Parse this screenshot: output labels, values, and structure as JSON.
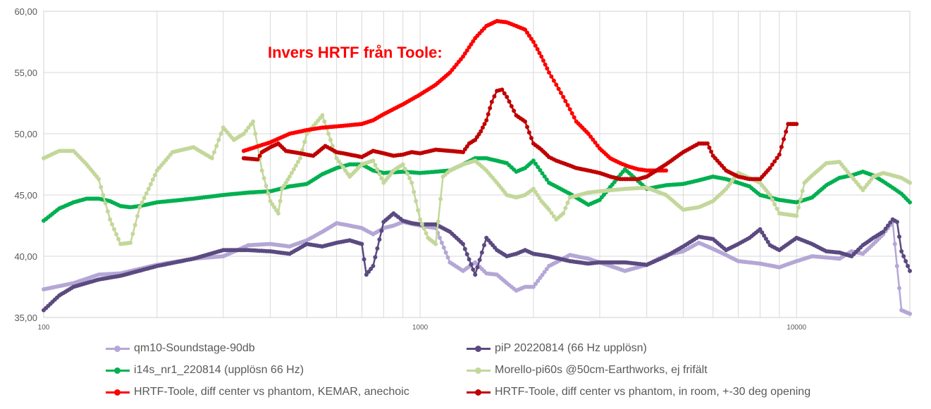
{
  "chart_data": {
    "type": "line",
    "title": "",
    "annotation": "Invers HRTF från Toole:",
    "x_scale": "log",
    "xlim": [
      100,
      20000
    ],
    "ylim": [
      35,
      60
    ],
    "x_ticks": [
      100,
      1000,
      10000
    ],
    "x_tick_labels": [
      "100",
      "1000",
      "10000"
    ],
    "y_ticks": [
      35,
      40,
      45,
      50,
      55,
      60
    ],
    "y_tick_labels": [
      "35,00",
      "40,00",
      "45,00",
      "50,00",
      "55,00",
      "60,00"
    ],
    "grid": true,
    "legend_position": "bottom",
    "series": [
      {
        "name": "qm10-Soundstage-90db",
        "color": "#b4a7d6",
        "x": [
          100,
          120,
          140,
          160,
          200,
          250,
          300,
          350,
          400,
          450,
          500,
          550,
          600,
          650,
          700,
          750,
          800,
          850,
          900,
          1000,
          1100,
          1200,
          1300,
          1400,
          1500,
          1600,
          1700,
          1800,
          1900,
          2000,
          2200,
          2500,
          2800,
          3000,
          3500,
          4000,
          4500,
          5000,
          5500,
          6000,
          6500,
          7000,
          8000,
          9000,
          10000,
          11000,
          12000,
          13000,
          14000,
          15000,
          16000,
          17000,
          18000,
          19000,
          20000
        ],
        "values": [
          37.3,
          37.8,
          38.5,
          38.6,
          39.3,
          39.8,
          40.0,
          40.9,
          41.0,
          40.8,
          41.3,
          42.0,
          42.7,
          42.5,
          42.3,
          41.8,
          42.3,
          42.5,
          42.8,
          42.5,
          42.3,
          39.5,
          38.8,
          39.5,
          38.6,
          38.5,
          37.8,
          37.2,
          37.5,
          37.5,
          39.2,
          40.1,
          39.8,
          39.5,
          38.8,
          39.3,
          40.1,
          40.4,
          41.1,
          40.6,
          40.1,
          39.6,
          39.4,
          39.1,
          39.6,
          40.0,
          39.9,
          39.8,
          40.4,
          40.2,
          41.0,
          41.8,
          42.8,
          35.6,
          35.3
        ]
      },
      {
        "name": "piP 20220814 (66 Hz upplösn)",
        "color": "#5b4a80",
        "x": [
          100,
          110,
          120,
          140,
          160,
          200,
          250,
          300,
          350,
          400,
          450,
          500,
          550,
          600,
          650,
          700,
          720,
          750,
          800,
          850,
          900,
          950,
          1000,
          1100,
          1200,
          1300,
          1400,
          1500,
          1600,
          1700,
          1800,
          1900,
          2000,
          2200,
          2500,
          2800,
          3000,
          3500,
          4000,
          4500,
          5000,
          5500,
          6000,
          6500,
          7000,
          7500,
          8000,
          8500,
          9000,
          10000,
          11000,
          12000,
          13000,
          14000,
          15000,
          16000,
          17000,
          18000,
          18500,
          19000,
          20000
        ],
        "values": [
          35.6,
          36.8,
          37.5,
          38.1,
          38.4,
          39.2,
          39.8,
          40.5,
          40.5,
          40.4,
          40.2,
          41.0,
          40.8,
          41.1,
          41.3,
          41.0,
          38.5,
          39.2,
          42.8,
          43.5,
          42.9,
          42.7,
          42.6,
          42.6,
          42.0,
          41.0,
          38.5,
          41.5,
          40.5,
          40.0,
          40.2,
          40.5,
          40.2,
          40.0,
          39.6,
          39.4,
          39.5,
          39.5,
          39.3,
          40.0,
          40.8,
          41.6,
          41.4,
          40.5,
          41.0,
          41.5,
          42.2,
          40.9,
          40.5,
          41.5,
          41.0,
          40.4,
          40.3,
          40.0,
          40.9,
          41.5,
          42.0,
          43.0,
          42.8,
          40.4,
          38.8
        ]
      },
      {
        "name": "i14s_nr1_220814 (upplösn 66 Hz)",
        "color": "#00b050",
        "x": [
          100,
          110,
          120,
          130,
          140,
          150,
          160,
          170,
          180,
          200,
          250,
          300,
          350,
          400,
          450,
          500,
          550,
          600,
          650,
          700,
          750,
          800,
          900,
          1000,
          1100,
          1200,
          1300,
          1400,
          1500,
          1600,
          1700,
          1800,
          1900,
          2000,
          2200,
          2500,
          2800,
          3000,
          3500,
          4000,
          4500,
          5000,
          5500,
          6000,
          6500,
          7000,
          7500,
          8000,
          9000,
          10000,
          11000,
          12000,
          13000,
          14000,
          15000,
          16000,
          17000,
          18000,
          19000,
          20000
        ],
        "values": [
          42.9,
          43.9,
          44.4,
          44.7,
          44.7,
          44.5,
          44.1,
          44.0,
          44.1,
          44.4,
          44.7,
          45.0,
          45.2,
          45.3,
          45.7,
          45.9,
          46.7,
          47.2,
          47.5,
          47.5,
          47.0,
          46.8,
          46.9,
          46.8,
          46.9,
          47.0,
          47.5,
          48.0,
          48.0,
          47.8,
          47.6,
          46.9,
          47.2,
          47.8,
          46.0,
          45.1,
          44.2,
          44.6,
          47.1,
          45.5,
          45.8,
          45.9,
          46.2,
          46.5,
          46.3,
          46.0,
          45.7,
          45.0,
          44.6,
          44.4,
          44.8,
          45.8,
          46.4,
          46.6,
          46.9,
          46.6,
          46.1,
          45.6,
          45.1,
          44.4
        ]
      },
      {
        "name": "Morello-pi60s @50cm-Earthworks, ej frifält",
        "color": "#c4d79b",
        "x": [
          100,
          110,
          120,
          130,
          140,
          150,
          160,
          170,
          180,
          190,
          200,
          220,
          250,
          280,
          300,
          320,
          340,
          360,
          370,
          380,
          400,
          420,
          430,
          450,
          480,
          500,
          550,
          600,
          650,
          700,
          750,
          800,
          850,
          900,
          950,
          1000,
          1050,
          1100,
          1150,
          1200,
          1300,
          1400,
          1500,
          1600,
          1700,
          1800,
          1900,
          2000,
          2100,
          2200,
          2300,
          2400,
          2500,
          2800,
          3000,
          3500,
          4000,
          4500,
          5000,
          5500,
          6000,
          6500,
          7000,
          8000,
          8500,
          9000,
          10000,
          10500,
          11000,
          12000,
          13000,
          14000,
          15000,
          16000,
          17000,
          18000,
          19000,
          20000
        ],
        "values": [
          48.0,
          48.6,
          48.6,
          47.5,
          46.3,
          43.0,
          41.0,
          41.1,
          44.0,
          45.5,
          47.0,
          48.5,
          48.9,
          48.0,
          50.5,
          49.5,
          50.0,
          51.0,
          49.0,
          47.0,
          44.5,
          43.5,
          45.5,
          46.5,
          48.0,
          50.0,
          51.5,
          48.0,
          46.5,
          47.5,
          47.8,
          46.0,
          47.0,
          47.5,
          46.0,
          43.0,
          41.5,
          41.0,
          46.5,
          47.0,
          47.5,
          47.8,
          47.0,
          46.0,
          45.0,
          44.8,
          45.0,
          45.5,
          44.5,
          43.8,
          43.0,
          43.5,
          44.8,
          45.2,
          45.3,
          45.5,
          45.6,
          45.0,
          43.8,
          44.0,
          44.5,
          45.5,
          46.8,
          46.0,
          45.0,
          43.5,
          43.3,
          46.0,
          46.6,
          47.6,
          47.7,
          46.5,
          45.4,
          46.5,
          46.8,
          46.6,
          46.4,
          46.0
        ]
      },
      {
        "name": "HRTF-Toole, diff center vs phantom, KEMAR, anechoic",
        "color": "#ff0000",
        "x": [
          340,
          400,
          450,
          500,
          550,
          600,
          650,
          700,
          750,
          800,
          900,
          1000,
          1100,
          1200,
          1300,
          1400,
          1500,
          1600,
          1700,
          1800,
          1900,
          2000,
          2100,
          2200,
          2300,
          2400,
          2500,
          2600,
          2800,
          3000,
          3200,
          3400,
          3600,
          3800,
          4000,
          4200,
          4500
        ],
        "values": [
          48.6,
          49.3,
          50.0,
          50.3,
          50.5,
          50.6,
          50.7,
          50.8,
          51.1,
          51.6,
          52.4,
          53.2,
          54.0,
          55.0,
          56.3,
          57.8,
          58.8,
          59.2,
          59.1,
          58.8,
          58.5,
          57.5,
          56.3,
          55.0,
          54.0,
          53.0,
          52.0,
          51.0,
          50.0,
          48.8,
          48.0,
          47.6,
          47.3,
          47.1,
          47.0,
          47.0,
          47.0
        ]
      },
      {
        "name": "HRTF-Toole, diff center vs phantom, in room, +-30 deg opening",
        "color": "#c00000",
        "x": [
          340,
          370,
          380,
          400,
          420,
          440,
          480,
          520,
          560,
          600,
          650,
          700,
          750,
          800,
          850,
          900,
          950,
          1000,
          1100,
          1200,
          1300,
          1350,
          1400,
          1450,
          1500,
          1550,
          1600,
          1650,
          1700,
          1800,
          1900,
          2000,
          2100,
          2200,
          2300,
          2400,
          2500,
          2600,
          2800,
          3000,
          3200,
          3400,
          3600,
          3800,
          4000,
          4500,
          5000,
          5500,
          5800,
          6000,
          6500,
          7000,
          7500,
          8000,
          8500,
          9000,
          9500,
          10000
        ],
        "values": [
          48.0,
          47.9,
          48.5,
          48.9,
          49.2,
          48.6,
          48.4,
          48.2,
          49.0,
          48.5,
          48.3,
          48.1,
          48.6,
          48.4,
          48.2,
          48.3,
          48.5,
          48.4,
          48.7,
          48.6,
          48.5,
          49.2,
          49.5,
          50.2,
          51.1,
          52.6,
          53.5,
          53.6,
          53.0,
          51.5,
          51.0,
          49.2,
          48.7,
          48.1,
          47.8,
          47.6,
          47.4,
          47.2,
          47.0,
          46.8,
          46.5,
          46.3,
          46.3,
          46.3,
          46.5,
          47.5,
          48.5,
          49.2,
          49.2,
          48.2,
          47.0,
          46.5,
          46.3,
          46.3,
          47.2,
          48.3,
          50.8,
          50.8
        ]
      }
    ]
  }
}
